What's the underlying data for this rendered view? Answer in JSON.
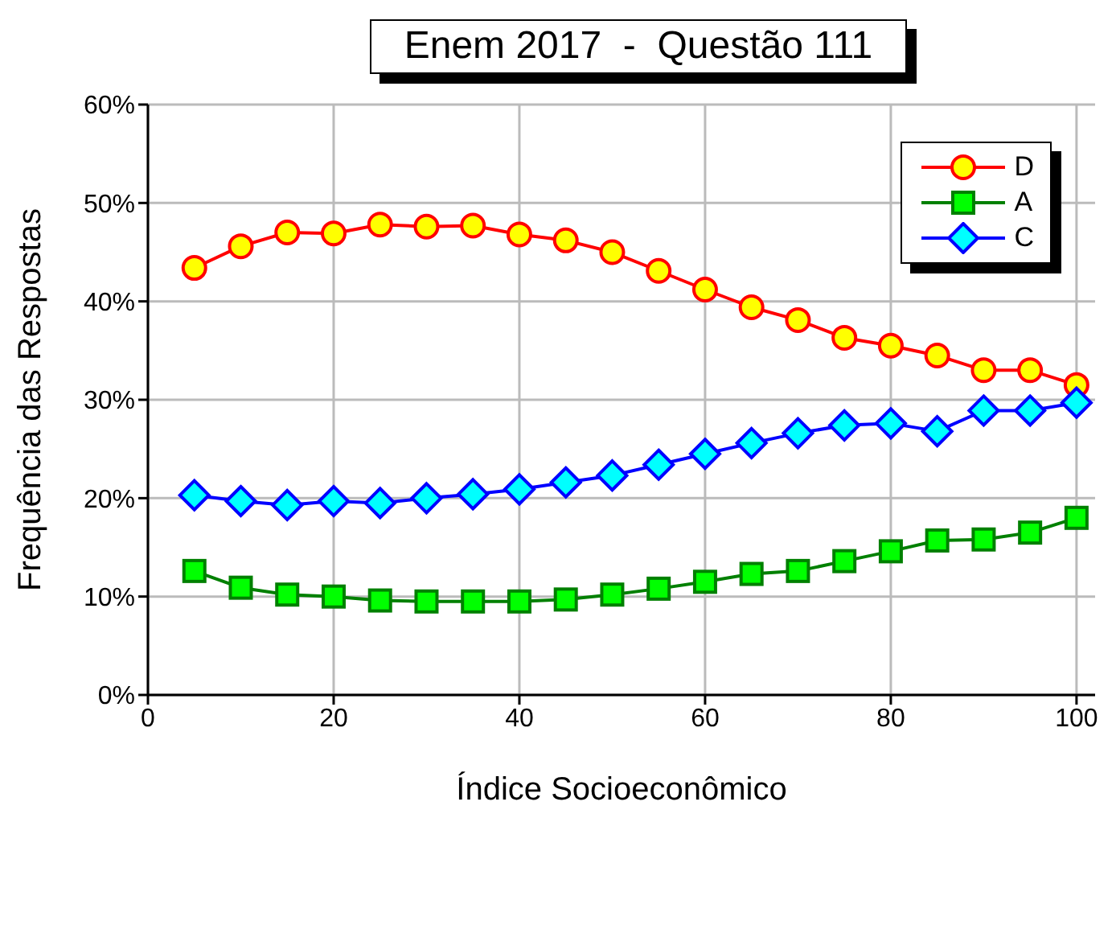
{
  "chart_data": {
    "type": "line",
    "title": "Enem 2017  -  Questão 111",
    "xlabel": "Índice Socioeconômico",
    "ylabel": "Frequência das Respostas",
    "x": [
      5,
      10,
      15,
      20,
      25,
      30,
      35,
      40,
      45,
      50,
      55,
      60,
      65,
      70,
      75,
      80,
      85,
      90,
      95,
      100
    ],
    "series": [
      {
        "name": "D",
        "color": "#ff0000",
        "colors": [
          "#ffff00",
          "#ffff00",
          "#ffff00",
          "#ffff00",
          "#ffff00",
          "#ffff00",
          "#ffff00",
          "#ffff00",
          "#ffff00",
          "#ffff00",
          "#ffff00",
          "#ffff00",
          "#ffff00",
          "#ffff00",
          "#ffff00",
          "#ffff00",
          "#ffff00",
          "#ffff00",
          "#ffff00",
          "#ffff00"
        ],
        "marker": "circle",
        "values": [
          43.4,
          45.6,
          47.0,
          46.9,
          47.8,
          47.6,
          47.7,
          46.8,
          46.2,
          45.0,
          43.1,
          41.2,
          39.4,
          38.1,
          36.3,
          35.5,
          34.5,
          33.0,
          33.0,
          31.5
        ]
      },
      {
        "name": "A",
        "color": "#008000",
        "colors": [
          "#00ff00",
          "#00ff00",
          "#00ff00",
          "#00ff00",
          "#00ff00",
          "#00ff00",
          "#00ff00",
          "#00ff00",
          "#00ff00",
          "#00ff00",
          "#00ff00",
          "#00ff00",
          "#00ff00",
          "#00ff00",
          "#00ff00",
          "#00ff00",
          "#00ff00",
          "#00ff00",
          "#00ff00",
          "#00ff00"
        ],
        "marker": "square",
        "values": [
          12.6,
          10.9,
          10.2,
          10.0,
          9.6,
          9.5,
          9.5,
          9.5,
          9.7,
          10.2,
          10.8,
          11.5,
          12.3,
          12.6,
          13.6,
          14.6,
          15.7,
          15.8,
          16.5,
          18.0
        ]
      },
      {
        "name": "C",
        "color": "#0000ff",
        "colors": [
          "#00ffff",
          "#00ffff",
          "#00ffff",
          "#00ffff",
          "#00ffff",
          "#00ffff",
          "#00ffff",
          "#00ffff",
          "#00ffff",
          "#00ffff",
          "#00ffff",
          "#00ffff",
          "#00ffff",
          "#00ffff",
          "#00ffff",
          "#00ffff",
          "#00ffff",
          "#00ffff",
          "#00ffff",
          "#00ffff"
        ],
        "marker": "diamond",
        "values": [
          20.3,
          19.7,
          19.3,
          19.7,
          19.5,
          20.0,
          20.4,
          20.9,
          21.6,
          22.3,
          23.4,
          24.5,
          25.6,
          26.6,
          27.4,
          27.6,
          26.8,
          28.9,
          28.9,
          29.7
        ]
      }
    ],
    "xlim": [
      0,
      102
    ],
    "xticks": [
      0,
      20,
      40,
      60,
      80,
      100
    ],
    "ylim": [
      0,
      60
    ],
    "yticks": [
      {
        "value": 0,
        "label": "0%"
      },
      {
        "value": 10,
        "label": "10%"
      },
      {
        "value": 20,
        "label": "20%"
      },
      {
        "value": 30,
        "label": "30%"
      },
      {
        "value": 40,
        "label": "40%"
      },
      {
        "value": 50,
        "label": "50%"
      },
      {
        "value": 60,
        "label": "60%"
      }
    ],
    "grid": true,
    "legend": "top right",
    "line_style": "solid"
  }
}
